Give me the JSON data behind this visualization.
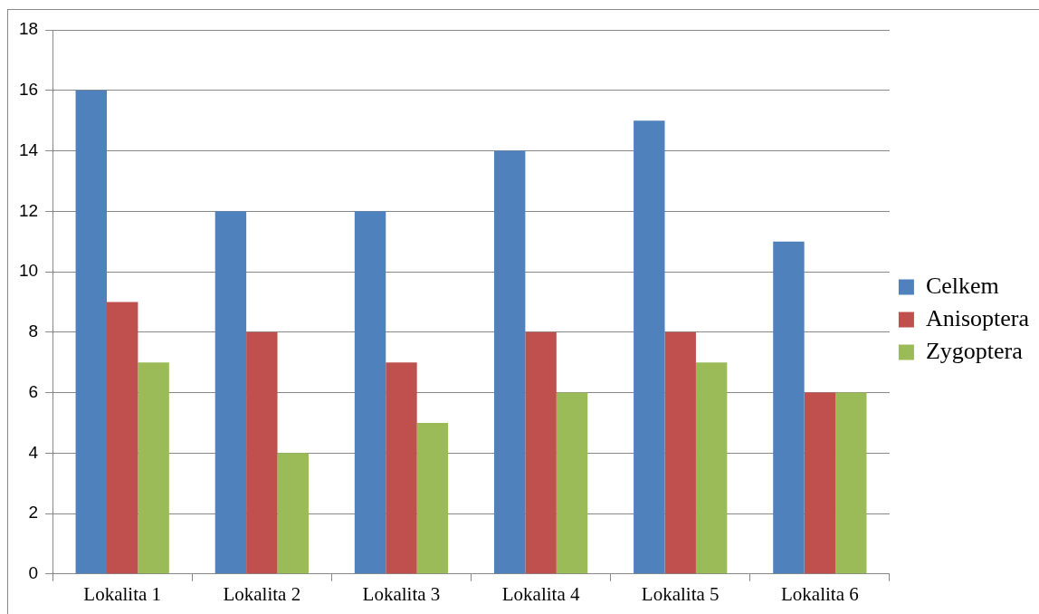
{
  "chart_data": {
    "type": "bar",
    "categories": [
      "Lokalita 1",
      "Lokalita 2",
      "Lokalita 3",
      "Lokalita 4",
      "Lokalita 5",
      "Lokalita 6"
    ],
    "series": [
      {
        "name": "Celkem",
        "color": "#4f81bd",
        "values": [
          16,
          12,
          12,
          14,
          15,
          11
        ]
      },
      {
        "name": "Anisoptera",
        "color": "#c0504d",
        "values": [
          9,
          8,
          7,
          8,
          8,
          6
        ]
      },
      {
        "name": "Zygoptera",
        "color": "#9bbb59",
        "values": [
          7,
          4,
          5,
          6,
          7,
          6
        ]
      }
    ],
    "ylim": [
      0,
      18
    ],
    "yticks": [
      0,
      2,
      4,
      6,
      8,
      10,
      12,
      14,
      16,
      18
    ],
    "grid": "y",
    "legend": "right"
  }
}
